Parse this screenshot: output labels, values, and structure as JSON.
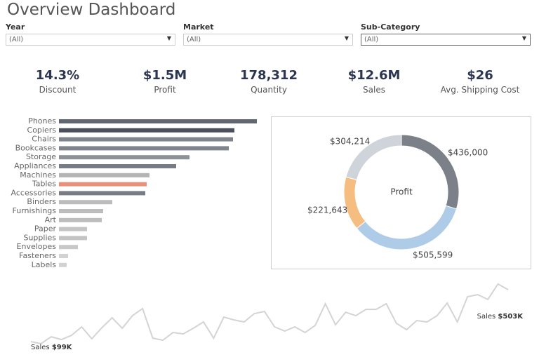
{
  "header": {
    "title": "Overview Dashboard"
  },
  "filters": [
    {
      "label": "Year",
      "value": "(All)"
    },
    {
      "label": "Market",
      "value": "(All)"
    },
    {
      "label": "Sub-Category",
      "value": "(All)"
    }
  ],
  "kpis": [
    {
      "value": "14.3%",
      "label": "Discount"
    },
    {
      "value": "$1.5M",
      "label": "Profit"
    },
    {
      "value": "178,312",
      "label": "Quantity"
    },
    {
      "value": "$12.6M",
      "label": "Sales"
    },
    {
      "value": "$26",
      "label": "Avg. Shipping Cost"
    }
  ],
  "chart_data": [
    {
      "type": "bar",
      "orientation": "horizontal",
      "categories": [
        "Phones",
        "Copiers",
        "Chairs",
        "Bookcases",
        "Storage",
        "Appliances",
        "Machines",
        "Tables",
        "Accessories",
        "Binders",
        "Furnishings",
        "Art",
        "Paper",
        "Supplies",
        "Envelopes",
        "Fasteners",
        "Labels"
      ],
      "values": [
        282,
        250,
        248,
        242,
        186,
        167,
        129,
        125,
        123,
        76,
        63,
        61,
        40,
        40,
        27,
        13,
        11
      ],
      "colors": [
        "#62666f",
        "#4b505c",
        "#80858d",
        "#80858d",
        "#8d9198",
        "#787d85",
        "#b4b4b4",
        "#e8907a",
        "#787d85",
        "#bcbcbc",
        "#bcbcbc",
        "#bcbcbc",
        "#c4c4c4",
        "#c4c4c4",
        "#c8c8c8",
        "#d2d2d2",
        "#d2d2d2"
      ]
    },
    {
      "type": "donut",
      "center_label": "Profit",
      "values": [
        436000,
        505599,
        221643,
        304214
      ],
      "value_labels": [
        "$436,000",
        "$505,599",
        "$221,643",
        "$304,214"
      ],
      "colors": [
        "#7b8089",
        "#aecbe8",
        "#f5bd7f",
        "#cfd3da"
      ]
    },
    {
      "type": "line",
      "color": "#d4d4d4",
      "values": [
        99,
        83,
        137,
        115,
        148,
        214,
        121,
        208,
        285,
        203,
        301,
        356,
        126,
        110,
        170,
        159,
        203,
        252,
        126,
        290,
        268,
        252,
        317,
        334,
        214,
        181,
        214,
        170,
        225,
        394,
        230,
        328,
        301,
        350,
        350,
        394,
        241,
        192,
        263,
        252,
        301,
        399,
        252,
        448,
        465,
        427,
        547,
        503
      ],
      "annotations": [
        {
          "text": "Sales",
          "value_label": "$99K"
        },
        {
          "text": "Sales",
          "value_label": "$503K"
        }
      ]
    }
  ]
}
